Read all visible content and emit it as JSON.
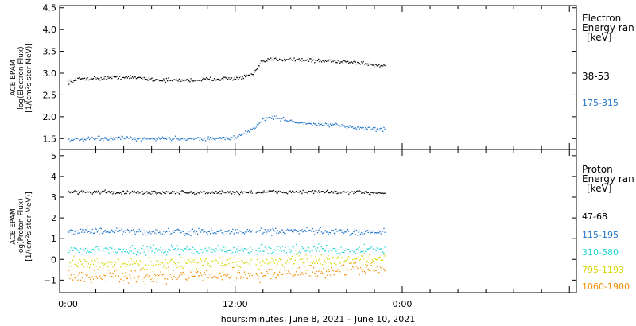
{
  "chart_data": [
    {
      "type": "scatter",
      "ylabel_lines": [
        "ACE EPAM",
        "log(Electron Flux)",
        "[1/(cm²s ster MeV)]"
      ],
      "ylim": [
        1.25,
        4.55
      ],
      "yticks": [
        "1.5",
        "2.0",
        "2.5",
        "3.0",
        "3.5",
        "4.0",
        "4.5"
      ],
      "legend_title": [
        "Electron",
        "Energy ran",
        "[keV]"
      ],
      "series": [
        {
          "name": "38-53",
          "color": "#000000",
          "x": [
            0.0,
            1.0,
            2.0,
            3.0,
            4.0,
            5.0,
            6.0,
            7.0,
            8.0,
            9.0,
            10.0,
            11.0,
            12.0,
            12.5,
            13.0,
            13.3,
            14.0,
            15.0,
            16.0,
            17.0,
            18.0,
            19.0,
            20.0,
            21.0,
            22.0,
            22.8
          ],
          "y": [
            2.8,
            2.88,
            2.88,
            2.9,
            2.9,
            2.9,
            2.86,
            2.84,
            2.84,
            2.84,
            2.86,
            2.88,
            2.88,
            2.9,
            2.94,
            2.98,
            3.28,
            3.32,
            3.32,
            3.3,
            3.28,
            3.28,
            3.26,
            3.24,
            3.18,
            3.18
          ]
        },
        {
          "name": "175-315",
          "color": "#1e73c8",
          "x": [
            0.0,
            1.0,
            2.0,
            3.0,
            4.0,
            5.0,
            6.0,
            7.0,
            8.0,
            9.0,
            10.0,
            11.0,
            12.0,
            12.5,
            13.0,
            13.5,
            14.0,
            15.0,
            16.0,
            17.0,
            18.0,
            19.0,
            20.0,
            21.0,
            22.0,
            22.8
          ],
          "y": [
            1.48,
            1.48,
            1.5,
            1.5,
            1.52,
            1.48,
            1.5,
            1.5,
            1.5,
            1.5,
            1.5,
            1.5,
            1.52,
            1.58,
            1.68,
            1.76,
            1.96,
            1.98,
            1.9,
            1.84,
            1.82,
            1.8,
            1.78,
            1.74,
            1.72,
            1.7
          ]
        }
      ]
    },
    {
      "type": "scatter",
      "ylabel_lines": [
        "ACE EPAM",
        "log(Proton Flux)",
        "[1/(cm²s ster MeV)]"
      ],
      "ylim": [
        -1.6,
        5.3
      ],
      "yticks": [
        "−1",
        "0",
        "1",
        "2",
        "3",
        "4",
        "5"
      ],
      "legend_title": [
        "Proton",
        "Energy ran",
        "[keV]"
      ],
      "series": [
        {
          "name": "47-68",
          "color": "#000000",
          "x": [
            0.0,
            2.0,
            4.0,
            6.0,
            8.0,
            10.0,
            12.0,
            14.0,
            16.0,
            18.0,
            20.0,
            22.8
          ],
          "y": [
            3.25,
            3.25,
            3.22,
            3.22,
            3.22,
            3.22,
            3.22,
            3.25,
            3.25,
            3.25,
            3.22,
            3.22
          ]
        },
        {
          "name": "115-195",
          "color": "#1e73c8",
          "x": [
            0.0,
            2.0,
            4.0,
            6.0,
            8.0,
            10.0,
            12.0,
            14.0,
            16.0,
            18.0,
            20.0,
            22.8
          ],
          "y": [
            1.35,
            1.35,
            1.32,
            1.32,
            1.32,
            1.32,
            1.32,
            1.35,
            1.35,
            1.35,
            1.32,
            1.32
          ]
        },
        {
          "name": "310-580",
          "color": "#22d4d4",
          "x": [
            0.0,
            2.0,
            4.0,
            6.0,
            8.0,
            10.0,
            12.0,
            14.0,
            16.0,
            18.0,
            20.0,
            22.8
          ],
          "y": [
            0.48,
            0.48,
            0.45,
            0.45,
            0.45,
            0.45,
            0.45,
            0.48,
            0.48,
            0.48,
            0.45,
            0.45
          ]
        },
        {
          "name": "795-1193",
          "color": "#d4d400",
          "x": [
            0.0,
            2.0,
            4.0,
            6.0,
            8.0,
            10.0,
            12.0,
            14.0,
            16.0,
            18.0,
            20.0,
            22.8
          ],
          "y": [
            -0.2,
            -0.18,
            -0.2,
            -0.2,
            -0.18,
            -0.18,
            -0.15,
            -0.12,
            -0.1,
            -0.05,
            0.0,
            0.05
          ]
        },
        {
          "name": "1060-1900",
          "color": "#f08c00",
          "x": [
            0.0,
            2.0,
            4.0,
            6.0,
            8.0,
            10.0,
            12.0,
            14.0,
            16.0,
            18.0,
            20.0,
            22.8
          ],
          "y": [
            -0.8,
            -0.78,
            -0.8,
            -0.8,
            -0.78,
            -0.78,
            -0.75,
            -0.72,
            -0.68,
            -0.62,
            -0.5,
            -0.4
          ]
        }
      ]
    }
  ],
  "x_axis": {
    "label": "hours:minutes, June  8, 2021 – June 10, 2021",
    "xlim": [
      -0.6,
      36.5
    ],
    "ticks": [
      {
        "x": 0,
        "label": "0:00"
      },
      {
        "x": 12,
        "label": "12:00"
      },
      {
        "x": 24,
        "label": "0:00"
      }
    ],
    "minor_tick_interval_hours": 2
  }
}
